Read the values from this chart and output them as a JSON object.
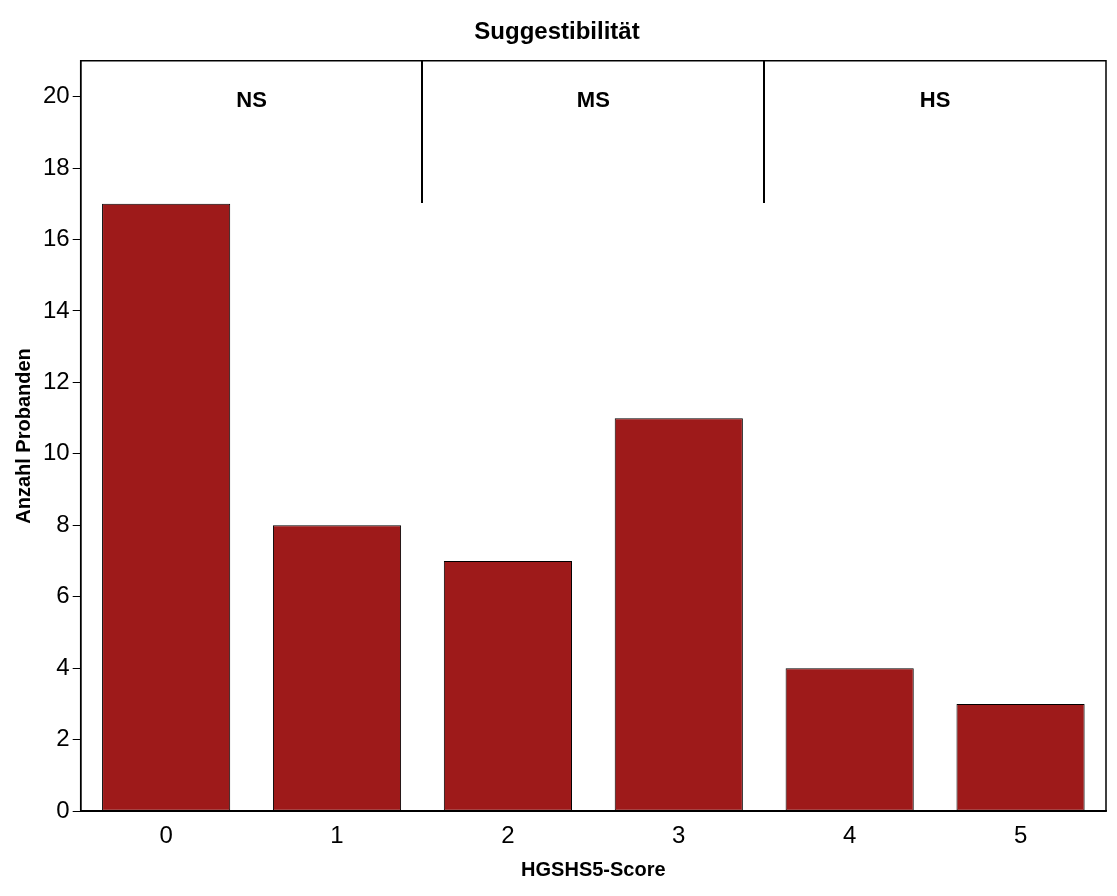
{
  "chart_data": {
    "type": "bar",
    "title": "Suggestibilität",
    "xlabel": "HGSHS5-Score",
    "ylabel": "Anzahl Probanden",
    "categories": [
      "0",
      "1",
      "2",
      "3",
      "4",
      "5"
    ],
    "values": [
      17,
      8,
      7,
      11,
      4,
      3
    ],
    "color": "#9e1a1a",
    "ylim": [
      0,
      21
    ],
    "yticks": [
      0,
      2,
      4,
      6,
      8,
      10,
      12,
      14,
      16,
      18,
      20
    ],
    "grid": false,
    "legend": false,
    "annotations": [
      "NS",
      "MS",
      "HS"
    ]
  }
}
